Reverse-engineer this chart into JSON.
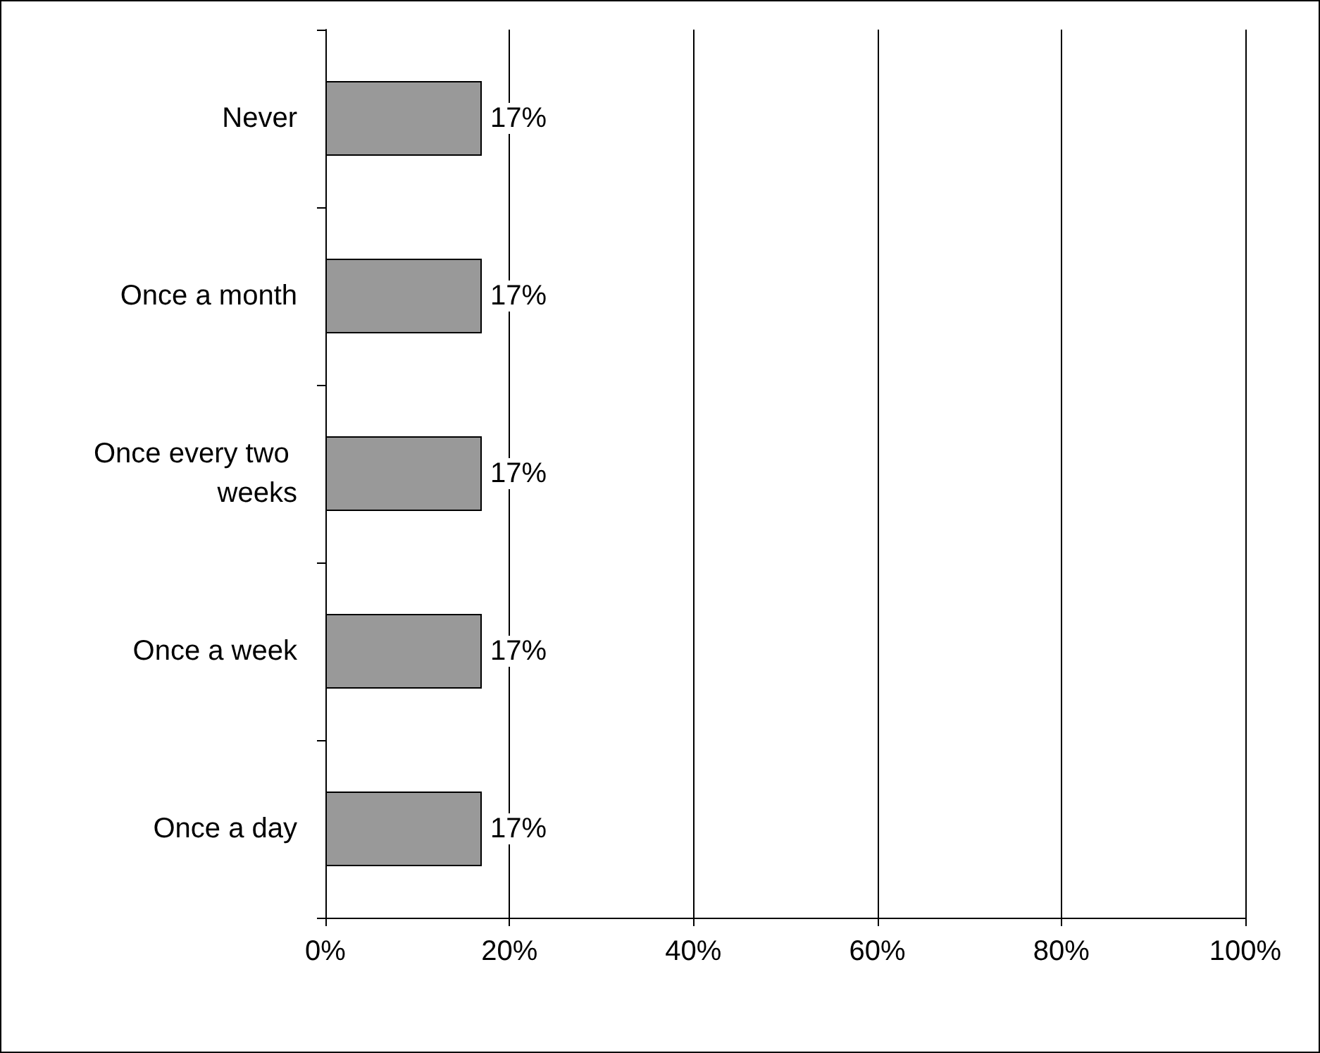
{
  "chart_data": {
    "type": "bar",
    "orientation": "horizontal",
    "categories": [
      "Never",
      "Once a month",
      "Once every two weeks",
      "Once a week",
      "Once a day"
    ],
    "values": [
      17,
      17,
      17,
      17,
      17
    ],
    "value_labels": [
      "17%",
      "17%",
      "17%",
      "17%",
      "17%"
    ],
    "color": "#999999",
    "xlim": [
      0,
      100
    ],
    "xticks": [
      {
        "value": 0,
        "label": "0%"
      },
      {
        "value": 20,
        "label": "20%"
      },
      {
        "value": 40,
        "label": "40%"
      },
      {
        "value": 60,
        "label": "60%"
      },
      {
        "value": 80,
        "label": "80%"
      },
      {
        "value": 100,
        "label": "100%"
      }
    ],
    "grid": "x"
  }
}
